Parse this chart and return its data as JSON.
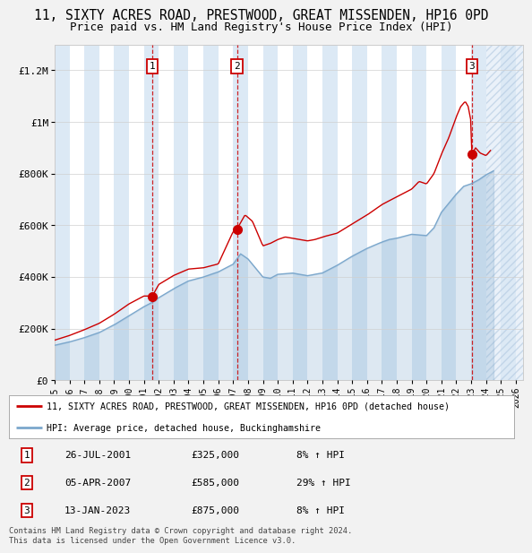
{
  "title1": "11, SIXTY ACRES ROAD, PRESTWOOD, GREAT MISSENDEN, HP16 0PD",
  "title2": "Price paid vs. HM Land Registry's House Price Index (HPI)",
  "ylim": [
    0,
    1300000
  ],
  "yticks": [
    0,
    200000,
    400000,
    600000,
    800000,
    1000000,
    1200000
  ],
  "ytick_labels": [
    "£0",
    "£200K",
    "£400K",
    "£600K",
    "£800K",
    "£1M",
    "£1.2M"
  ],
  "sale_dates": [
    2001.57,
    2007.26,
    2023.04
  ],
  "sale_prices": [
    325000,
    585000,
    875000
  ],
  "sale_labels": [
    "1",
    "2",
    "3"
  ],
  "red_line_color": "#cc0000",
  "blue_line_color": "#7ba7cc",
  "legend_label1": "11, SIXTY ACRES ROAD, PRESTWOOD, GREAT MISSENDEN, HP16 0PD (detached house)",
  "legend_label2": "HPI: Average price, detached house, Buckinghamshire",
  "table_rows": [
    [
      "1",
      "26-JUL-2001",
      "£325,000",
      "8% ↑ HPI"
    ],
    [
      "2",
      "05-APR-2007",
      "£585,000",
      "29% ↑ HPI"
    ],
    [
      "3",
      "13-JAN-2023",
      "£875,000",
      "8% ↑ HPI"
    ]
  ],
  "footer": "Contains HM Land Registry data © Crown copyright and database right 2024.\nThis data is licensed under the Open Government Licence v3.0."
}
